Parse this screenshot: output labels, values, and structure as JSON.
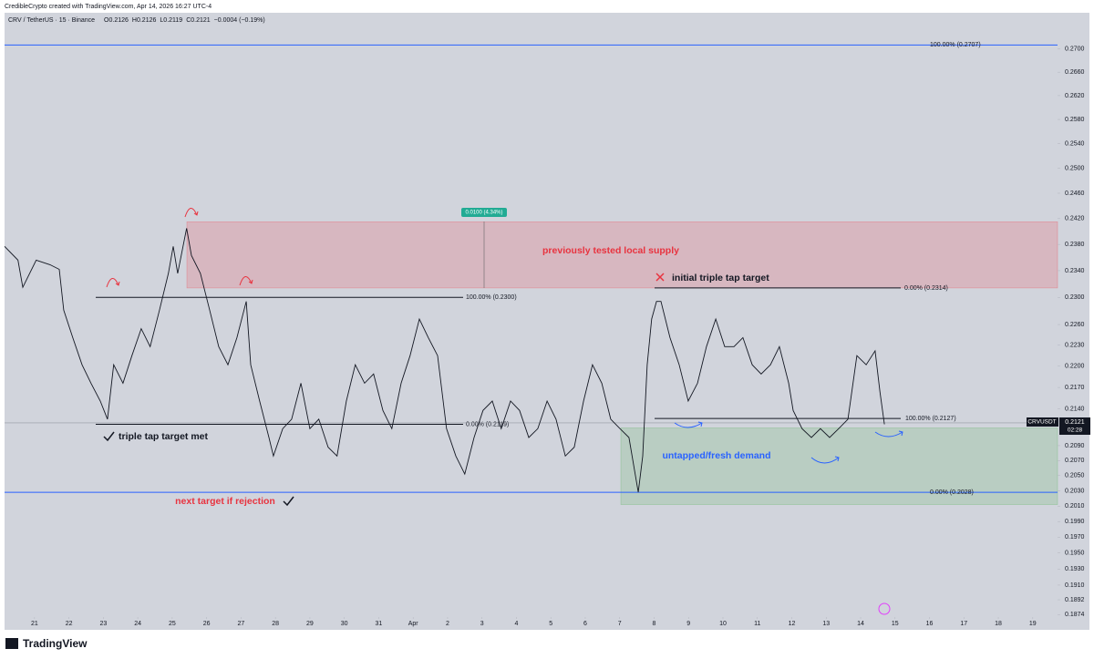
{
  "chart_data": {
    "type": "line",
    "watermark": "CredibleCrypto created with TradingView.com, Apr 14, 2026 16:27 UTC-4",
    "legend_text": "CRV / TetherUS · 15 · Binance",
    "ohlc": [
      {
        "label": "O",
        "value": 0.2126
      },
      {
        "label": "H",
        "value": 0.2126
      },
      {
        "label": "L",
        "value": 0.2119
      },
      {
        "label": "C",
        "value": 0.2121
      }
    ],
    "change": "−0.0004 (−0.19%)",
    "last_price": {
      "symbol": "CRVUSDT",
      "price": 0.2121,
      "countdown": "02:28"
    },
    "measure_label": "0.0100 (4.34%)",
    "annotations": [
      "previously tested local supply",
      "initial triple tap target",
      "triple tap target met",
      "untapped/fresh demand",
      "next target if rejection"
    ],
    "levels": [
      {
        "label": "100.00% (0.2707)",
        "value": 0.2707,
        "color": "#2962ff"
      },
      {
        "label": "100.00% (0.2300)",
        "value": 0.23,
        "color": "#131722"
      },
      {
        "label": "0.00% (0.2119)",
        "value": 0.2119,
        "color": "#131722"
      },
      {
        "label": "0.00% (0.2314)",
        "value": 0.2314,
        "color": "#131722"
      },
      {
        "label": "100.00% (0.2127)",
        "value": 0.2127,
        "color": "#131722"
      },
      {
        "label": "0.00% (0.2028)",
        "value": 0.2028,
        "color": "#2962ff"
      }
    ],
    "zones": [
      {
        "low": 0.2314,
        "high": 0.2415,
        "color": "#f23645"
      },
      {
        "low": 0.2012,
        "high": 0.2114,
        "color": "#4caf50"
      }
    ],
    "series": [
      {
        "name": "CRVUSDT",
        "color": "#131722",
        "x": [
          -0.87,
          -0.48,
          -0.34,
          0.05,
          0.45,
          0.72,
          0.85,
          1.11,
          1.38,
          1.64,
          1.91,
          2.12,
          2.3,
          2.57,
          2.83,
          3.1,
          3.36,
          3.63,
          3.89,
          4.03,
          4.16,
          4.42,
          4.56,
          4.82,
          5.09,
          5.35,
          5.62,
          5.88,
          6.15,
          6.28,
          6.54,
          6.81,
          6.94,
          7.21,
          7.47,
          7.74,
          8.0,
          8.26,
          8.53,
          8.79,
          9.06,
          9.32,
          9.59,
          9.85,
          10.12,
          10.38,
          10.65,
          10.91,
          11.18,
          11.44,
          11.71,
          11.97,
          12.24,
          12.5,
          12.77,
          13.03,
          13.3,
          13.56,
          13.83,
          14.09,
          14.36,
          14.62,
          14.89,
          15.15,
          15.42,
          15.68,
          15.95,
          16.21,
          16.48,
          16.74,
          17.01,
          17.27,
          17.54,
          17.67,
          17.8,
          17.93,
          18.07,
          18.2,
          18.46,
          18.73,
          18.99,
          19.26,
          19.52,
          19.79,
          20.05,
          20.32,
          20.58,
          20.85,
          21.11,
          21.38,
          21.64,
          21.91,
          22.04,
          22.3,
          22.57,
          22.83,
          23.1,
          23.36,
          23.63,
          23.89,
          24.16,
          24.42,
          24.56,
          24.69
        ],
        "values": [
          0.2377,
          0.2356,
          0.2315,
          0.2356,
          0.2349,
          0.2342,
          0.2281,
          0.2241,
          0.2202,
          0.2176,
          0.2151,
          0.2126,
          0.2202,
          0.2176,
          0.2215,
          0.2254,
          0.2228,
          0.2281,
          0.2336,
          0.2377,
          0.2336,
          0.2405,
          0.2363,
          0.2336,
          0.2281,
          0.2228,
          0.2202,
          0.2241,
          0.2294,
          0.2202,
          0.2151,
          0.2101,
          0.2076,
          0.2113,
          0.2126,
          0.2176,
          0.2113,
          0.2126,
          0.2088,
          0.2076,
          0.2151,
          0.2202,
          0.2176,
          0.2189,
          0.2138,
          0.2113,
          0.2176,
          0.2215,
          0.2268,
          0.2241,
          0.2215,
          0.2113,
          0.2076,
          0.2052,
          0.2101,
          0.2138,
          0.2151,
          0.2113,
          0.2151,
          0.2138,
          0.2101,
          0.2113,
          0.2151,
          0.2126,
          0.2076,
          0.2088,
          0.2151,
          0.2202,
          0.2176,
          0.2126,
          0.2113,
          0.2101,
          0.2028,
          0.2076,
          0.2202,
          0.2268,
          0.2294,
          0.2294,
          0.2241,
          0.2202,
          0.2151,
          0.2176,
          0.2228,
          0.2268,
          0.2228,
          0.2228,
          0.2241,
          0.2202,
          0.2189,
          0.2202,
          0.2228,
          0.2176,
          0.2138,
          0.2113,
          0.2101,
          0.2113,
          0.2101,
          0.2113,
          0.2126,
          0.2215,
          0.2202,
          0.2222,
          0.2164,
          0.2119
        ]
      }
    ],
    "xlim": [
      -0.87,
      29.72
    ],
    "xticks": [
      {
        "value": 0,
        "label": "21"
      },
      {
        "value": 1,
        "label": "22"
      },
      {
        "value": 2,
        "label": "23"
      },
      {
        "value": 3,
        "label": "24"
      },
      {
        "value": 4,
        "label": "25"
      },
      {
        "value": 5,
        "label": "26"
      },
      {
        "value": 6,
        "label": "27"
      },
      {
        "value": 7,
        "label": "28"
      },
      {
        "value": 8,
        "label": "29"
      },
      {
        "value": 9,
        "label": "30"
      },
      {
        "value": 10,
        "label": "31"
      },
      {
        "value": 11,
        "label": "Apr"
      },
      {
        "value": 12,
        "label": "2"
      },
      {
        "value": 13,
        "label": "3"
      },
      {
        "value": 14,
        "label": "4"
      },
      {
        "value": 15,
        "label": "5"
      },
      {
        "value": 16,
        "label": "6"
      },
      {
        "value": 17,
        "label": "7"
      },
      {
        "value": 18,
        "label": "8"
      },
      {
        "value": 19,
        "label": "9"
      },
      {
        "value": 20,
        "label": "10"
      },
      {
        "value": 21,
        "label": "11"
      },
      {
        "value": 22,
        "label": "12"
      },
      {
        "value": 23,
        "label": "13"
      },
      {
        "value": 24,
        "label": "14"
      },
      {
        "value": 25,
        "label": "15"
      },
      {
        "value": 26,
        "label": "16"
      },
      {
        "value": 27,
        "label": "17"
      },
      {
        "value": 28,
        "label": "18"
      },
      {
        "value": 29,
        "label": "19"
      }
    ],
    "ylim": [
      0.1871,
      0.2764
    ],
    "log_scale": true,
    "yticks": [
      {
        "value": 0.27,
        "label": "0.2700"
      },
      {
        "value": 0.266,
        "label": "0.2660"
      },
      {
        "value": 0.262,
        "label": "0.2620"
      },
      {
        "value": 0.258,
        "label": "0.2580"
      },
      {
        "value": 0.254,
        "label": "0.2540"
      },
      {
        "value": 0.25,
        "label": "0.2500"
      },
      {
        "value": 0.246,
        "label": "0.2460"
      },
      {
        "value": 0.242,
        "label": "0.2420"
      },
      {
        "value": 0.238,
        "label": "0.2380"
      },
      {
        "value": 0.234,
        "label": "0.2340"
      },
      {
        "value": 0.23,
        "label": "0.2300"
      },
      {
        "value": 0.226,
        "label": "0.2260"
      },
      {
        "value": 0.223,
        "label": "0.2230"
      },
      {
        "value": 0.22,
        "label": "0.2200"
      },
      {
        "value": 0.217,
        "label": "0.2170"
      },
      {
        "value": 0.214,
        "label": "0.2140"
      },
      {
        "value": 0.209,
        "label": "0.2090"
      },
      {
        "value": 0.207,
        "label": "0.2070"
      },
      {
        "value": 0.205,
        "label": "0.2050"
      },
      {
        "value": 0.203,
        "label": "0.2030"
      },
      {
        "value": 0.201,
        "label": "0.2010"
      },
      {
        "value": 0.199,
        "label": "0.1990"
      },
      {
        "value": 0.197,
        "label": "0.1970"
      },
      {
        "value": 0.195,
        "label": "0.1950"
      },
      {
        "value": 0.193,
        "label": "0.1930"
      },
      {
        "value": 0.191,
        "label": "0.1910"
      },
      {
        "value": 0.1892,
        "label": "0.1892"
      },
      {
        "value": 0.1874,
        "label": "0.1874"
      }
    ],
    "grid": false,
    "footer": "TradingView"
  }
}
